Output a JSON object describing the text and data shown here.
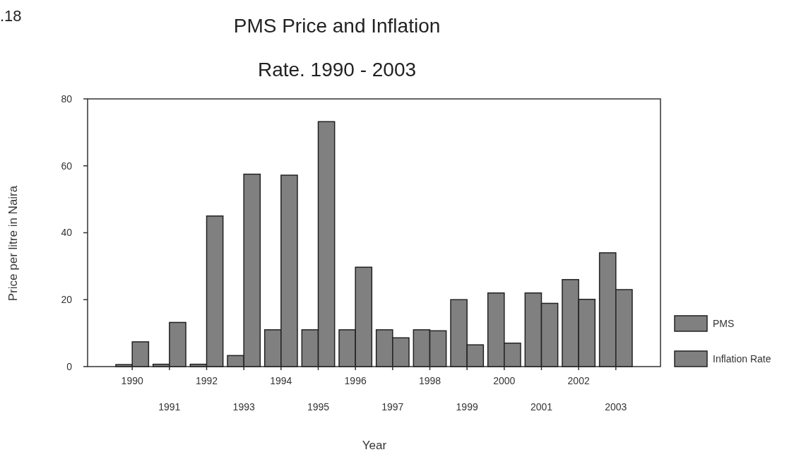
{
  "chart_data": {
    "type": "bar",
    "title": "PMS Price and Inflation\nRate. 1990 - 2003",
    "xlabel": "Year",
    "ylabel": "Price per litre in Naira",
    "annotations": [
      ".18"
    ],
    "categories": [
      "1990",
      "1991",
      "1992",
      "1993",
      "1994",
      "1995",
      "1996",
      "1997",
      "1998",
      "1999",
      "2000",
      "2001",
      "2002",
      "2003"
    ],
    "series": [
      {
        "name": "PMS",
        "color": "#808080",
        "values": [
          0.6,
          0.7,
          0.7,
          3.3,
          11,
          11,
          11,
          11,
          11,
          20,
          22,
          22,
          26,
          34
        ]
      },
      {
        "name": "Inflation Rate",
        "color": "#808080",
        "values": [
          7.4,
          13.2,
          45,
          57.5,
          57.2,
          73.2,
          29.7,
          8.6,
          10.7,
          6.5,
          7,
          18.9,
          20.1,
          23
        ]
      }
    ],
    "ylim": [
      0,
      80
    ],
    "yticks": [
      0,
      20,
      40,
      60,
      80
    ],
    "grid": false,
    "legend": "right"
  }
}
